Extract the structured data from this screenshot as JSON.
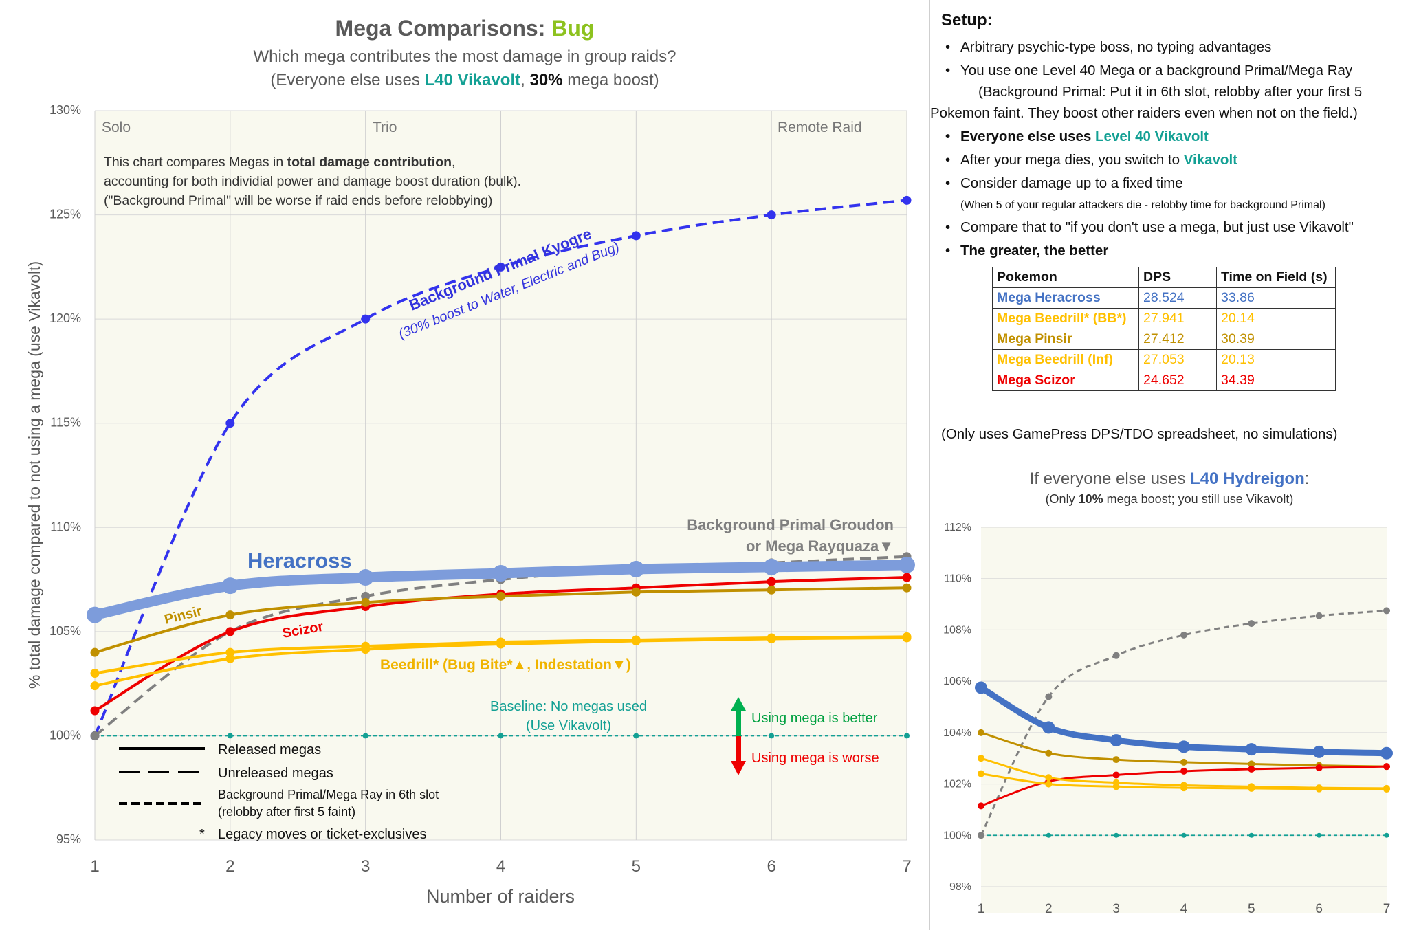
{
  "header": {
    "title_prefix": "Mega Comparisons: ",
    "title_type": "Bug",
    "subtitle1": "Which mega contributes the most damage in group raids?",
    "subtitle2_a": "(Everyone else uses ",
    "subtitle2_b": "L40 Vikavolt",
    "subtitle2_c": ", ",
    "subtitle2_d": "30%",
    "subtitle2_e": " mega boost)",
    "accent_type": "#8dc21f",
    "accent_teal": "#13a094"
  },
  "regions": {
    "solo": "Solo",
    "trio": "Trio",
    "remote": "Remote Raid"
  },
  "intro": {
    "line1_a": "This chart compares Megas in ",
    "line1_b": "total damage contribution",
    "line1_c": ",",
    "line2": "accounting for both individial power and damage boost duration (bulk).",
    "line3": "(\"Background Primal\" will be worse if raid ends before relobbying)"
  },
  "labels": {
    "kyogre1": "Background Primal Kyogre",
    "kyogre2": "(30% boost to Water, Electric and Bug)",
    "groudon1": "Background Primal Groudon",
    "groudon2": "or Mega Rayquaza▼",
    "heracross": "Heracross",
    "pinsir": "Pinsir",
    "scizor": "Scizor",
    "beedrill": "Beedrill* (Bug Bite*▲, Indestation▼)",
    "baseline1": "Baseline: No megas used",
    "baseline2": "(Use Vikavolt)",
    "better": "Using mega is better",
    "worse": "Using mega is worse"
  },
  "legend": {
    "released": "Released megas",
    "unreleased": "Unreleased megas",
    "background1": "Background Primal/Mega Ray in 6th slot",
    "background2": "(relobby after first 5 faint)",
    "legacy_mark": "*",
    "legacy": "Legacy moves or ticket-exclusives"
  },
  "setup": {
    "heading": "Setup:",
    "b1": "Arbitrary psychic-type boss, no typing advantages",
    "b2": "You use one Level 40 Mega or a background Primal/Mega Ray",
    "b2_sub": "(Background Primal: Put it in 6th slot, relobby after your first 5",
    "b2_cont": "Pokemon faint. They boost other raiders even when not on the field.)",
    "b3_a": "Everyone else uses ",
    "b3_b": "Level 40 Vikavolt",
    "b4_a": "After your mega dies, you switch to ",
    "b4_b": "Vikavolt",
    "b5": "Consider damage up to a fixed time",
    "b5_sub": "(When 5 of your regular attackers die - relobby time for background Primal)",
    "b6": "Compare that to \"if you don't use a mega, but just use Vikavolt\"",
    "b7": "The greater, the better",
    "note": "(Only uses GamePress DPS/TDO spreadsheet, no simulations)"
  },
  "table": {
    "headers": [
      "Pokemon",
      "DPS",
      "Time on Field (s)"
    ],
    "rows": [
      {
        "name": "Mega Heracross",
        "dps": "28.524",
        "time": "33.86",
        "color": "#4472c4"
      },
      {
        "name": "Mega Beedrill* (BB*)",
        "dps": "27.941",
        "time": "20.14",
        "color": "#ffc000"
      },
      {
        "name": "Mega Pinsir",
        "dps": "27.412",
        "time": "30.39",
        "color": "#c09000"
      },
      {
        "name": "Mega Beedrill (Inf)",
        "dps": "27.053",
        "time": "20.13",
        "color": "#ffc000"
      },
      {
        "name": "Mega Scizor",
        "dps": "24.652",
        "time": "34.39",
        "color": "#ee0000"
      }
    ]
  },
  "mini": {
    "title_a": "If everyone else uses ",
    "title_b": "L40 Hydreigon",
    "title_c": ":",
    "sub_a": "(Only ",
    "sub_b": "10%",
    "sub_c": " mega boost; you still use Vikavolt)",
    "accent": "#4472c4"
  },
  "chart_data": [
    {
      "type": "line",
      "title": "Mega Comparisons: Bug",
      "xlabel": "Number of raiders",
      "ylabel": "% total damage compared to not using a mega (use Vikavolt)",
      "x": [
        1,
        2,
        3,
        4,
        5,
        6,
        7
      ],
      "xlim": [
        1,
        7
      ],
      "ylim": [
        95,
        130
      ],
      "y_ticks": [
        95,
        100,
        105,
        110,
        115,
        120,
        125,
        130
      ],
      "y_tick_labels": [
        "95%",
        "100%",
        "105%",
        "110%",
        "115%",
        "120%",
        "125%",
        "130%"
      ],
      "grid": true,
      "series": [
        {
          "name": "Background Primal Kyogre",
          "values": [
            100.0,
            115.0,
            120.0,
            122.5,
            124.0,
            125.0,
            125.7
          ],
          "color": "#3333ee",
          "style": "dashed"
        },
        {
          "name": "Background Primal Groudon or Mega Rayquaza",
          "values": [
            100.0,
            105.0,
            106.7,
            107.5,
            108.0,
            108.3,
            108.6
          ],
          "color": "#808080",
          "style": "dashed"
        },
        {
          "name": "Heracross",
          "values": [
            105.8,
            107.2,
            107.6,
            107.8,
            108.0,
            108.1,
            108.2
          ],
          "color": "#7d9cdb",
          "style": "thick"
        },
        {
          "name": "Scizor",
          "values": [
            101.2,
            105.0,
            106.2,
            106.8,
            107.1,
            107.4,
            107.6
          ],
          "color": "#ee0000",
          "style": "solid"
        },
        {
          "name": "Pinsir",
          "values": [
            104.0,
            105.8,
            106.4,
            106.7,
            106.9,
            107.0,
            107.1
          ],
          "color": "#c09000",
          "style": "solid"
        },
        {
          "name": "Beedrill* (Bug Bite*)",
          "values": [
            103.0,
            104.0,
            104.3,
            104.5,
            104.6,
            104.7,
            104.75
          ],
          "color": "#ffc000",
          "style": "solid"
        },
        {
          "name": "Beedrill (Indestation)",
          "values": [
            102.4,
            103.7,
            104.15,
            104.4,
            104.55,
            104.65,
            104.7
          ],
          "color": "#ffc000",
          "style": "solid"
        },
        {
          "name": "Baseline: No megas used",
          "values": [
            100,
            100,
            100,
            100,
            100,
            100,
            100
          ],
          "color": "#13a094",
          "style": "dotted"
        }
      ]
    },
    {
      "type": "line",
      "title": "If everyone else uses L40 Hydreigon:",
      "x": [
        1,
        2,
        3,
        4,
        5,
        6,
        7
      ],
      "xlim": [
        1,
        7
      ],
      "ylim": [
        98,
        112
      ],
      "y_ticks": [
        98,
        100,
        102,
        104,
        106,
        108,
        110,
        112
      ],
      "y_tick_labels": [
        "98%",
        "100%",
        "102%",
        "104%",
        "106%",
        "108%",
        "110%",
        "112%"
      ],
      "grid": true,
      "series": [
        {
          "values": [
            100.0,
            105.4,
            107.0,
            107.8,
            108.25,
            108.55,
            108.75
          ],
          "color": "#808080",
          "style": "dashed"
        },
        {
          "values": [
            105.75,
            104.2,
            103.7,
            103.45,
            103.35,
            103.25,
            103.2
          ],
          "color": "#4472c4",
          "style": "thick"
        },
        {
          "values": [
            104.0,
            103.2,
            102.95,
            102.85,
            102.78,
            102.72,
            102.68
          ],
          "color": "#c09000",
          "style": "solid"
        },
        {
          "values": [
            101.15,
            102.1,
            102.35,
            102.5,
            102.58,
            102.63,
            102.68
          ],
          "color": "#ee0000",
          "style": "solid"
        },
        {
          "values": [
            103.0,
            102.25,
            102.05,
            101.95,
            101.9,
            101.85,
            101.83
          ],
          "color": "#ffc000",
          "style": "solid"
        },
        {
          "values": [
            102.4,
            102.0,
            101.9,
            101.85,
            101.83,
            101.81,
            101.8
          ],
          "color": "#ffc000",
          "style": "solid"
        },
        {
          "values": [
            100,
            100,
            100,
            100,
            100,
            100,
            100
          ],
          "color": "#13a094",
          "style": "dotted"
        }
      ]
    }
  ]
}
